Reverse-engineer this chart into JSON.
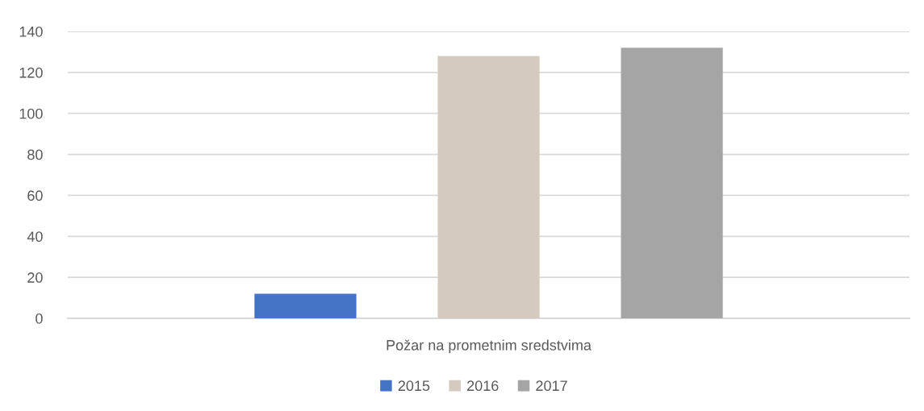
{
  "chart_data": {
    "type": "bar",
    "categories": [
      "Požar na prometnim sredstvima"
    ],
    "series": [
      {
        "name": "2015",
        "color": "#4472c4",
        "values": [
          12
        ]
      },
      {
        "name": "2016",
        "color": "#d4cbbe",
        "values": [
          128
        ]
      },
      {
        "name": "2017",
        "color": "#a5a5a5",
        "values": [
          132
        ]
      }
    ],
    "ylim": [
      0,
      140
    ],
    "yticks": [
      0,
      20,
      40,
      60,
      80,
      100,
      120,
      140
    ],
    "grid": "y",
    "legend": "bottom"
  }
}
